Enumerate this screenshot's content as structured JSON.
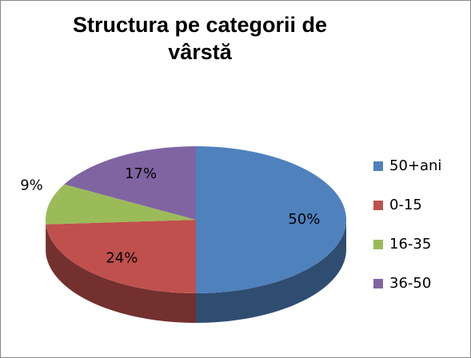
{
  "chart_data": {
    "type": "pie",
    "title": "Structura pe categorii de vârstă",
    "categories": [
      "50+ani",
      "0-15",
      "16-35",
      "36-50"
    ],
    "values": [
      50,
      24,
      9,
      17
    ],
    "value_labels": [
      "50%",
      "24%",
      "9%",
      "17%"
    ],
    "colors": [
      "#4f81bd",
      "#c0504d",
      "#9bbb59",
      "#8064a2"
    ],
    "legend": "right"
  }
}
